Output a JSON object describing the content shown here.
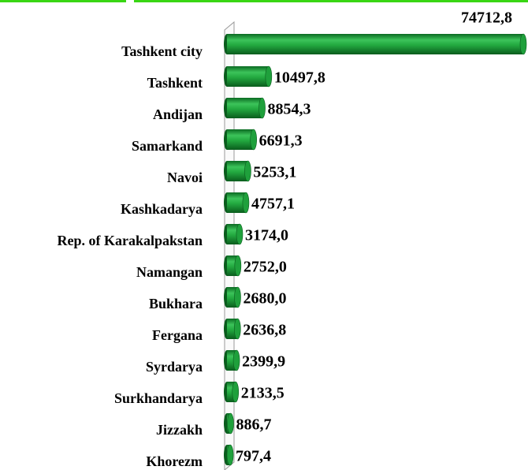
{
  "chart_data": {
    "type": "bar",
    "orientation": "horizontal",
    "categories": [
      "Tashkent city",
      "Tashkent",
      "Andijan",
      "Samarkand",
      "Navoi",
      "Kashkadarya",
      "Rep. of Karakalpakstan",
      "Namangan",
      "Bukhara",
      "Fergana",
      "Syrdarya",
      "Surkhandarya",
      "Jizzakh",
      "Khorezm"
    ],
    "values": [
      74712.8,
      10497.8,
      8854.3,
      6691.3,
      5253.1,
      4757.1,
      3174.0,
      2752.0,
      2680.0,
      2636.8,
      2399.9,
      2133.5,
      886.7,
      797.4
    ],
    "value_labels": [
      "74712,8",
      "10497,8",
      "8854,3",
      "6691,3",
      "5253,1",
      "4757,1",
      "3174,0",
      "2752,0",
      "2680,0",
      "2636,8",
      "2399,9",
      "2133,5",
      "886,7",
      "797,4"
    ],
    "color": "#1fa03c"
  }
}
